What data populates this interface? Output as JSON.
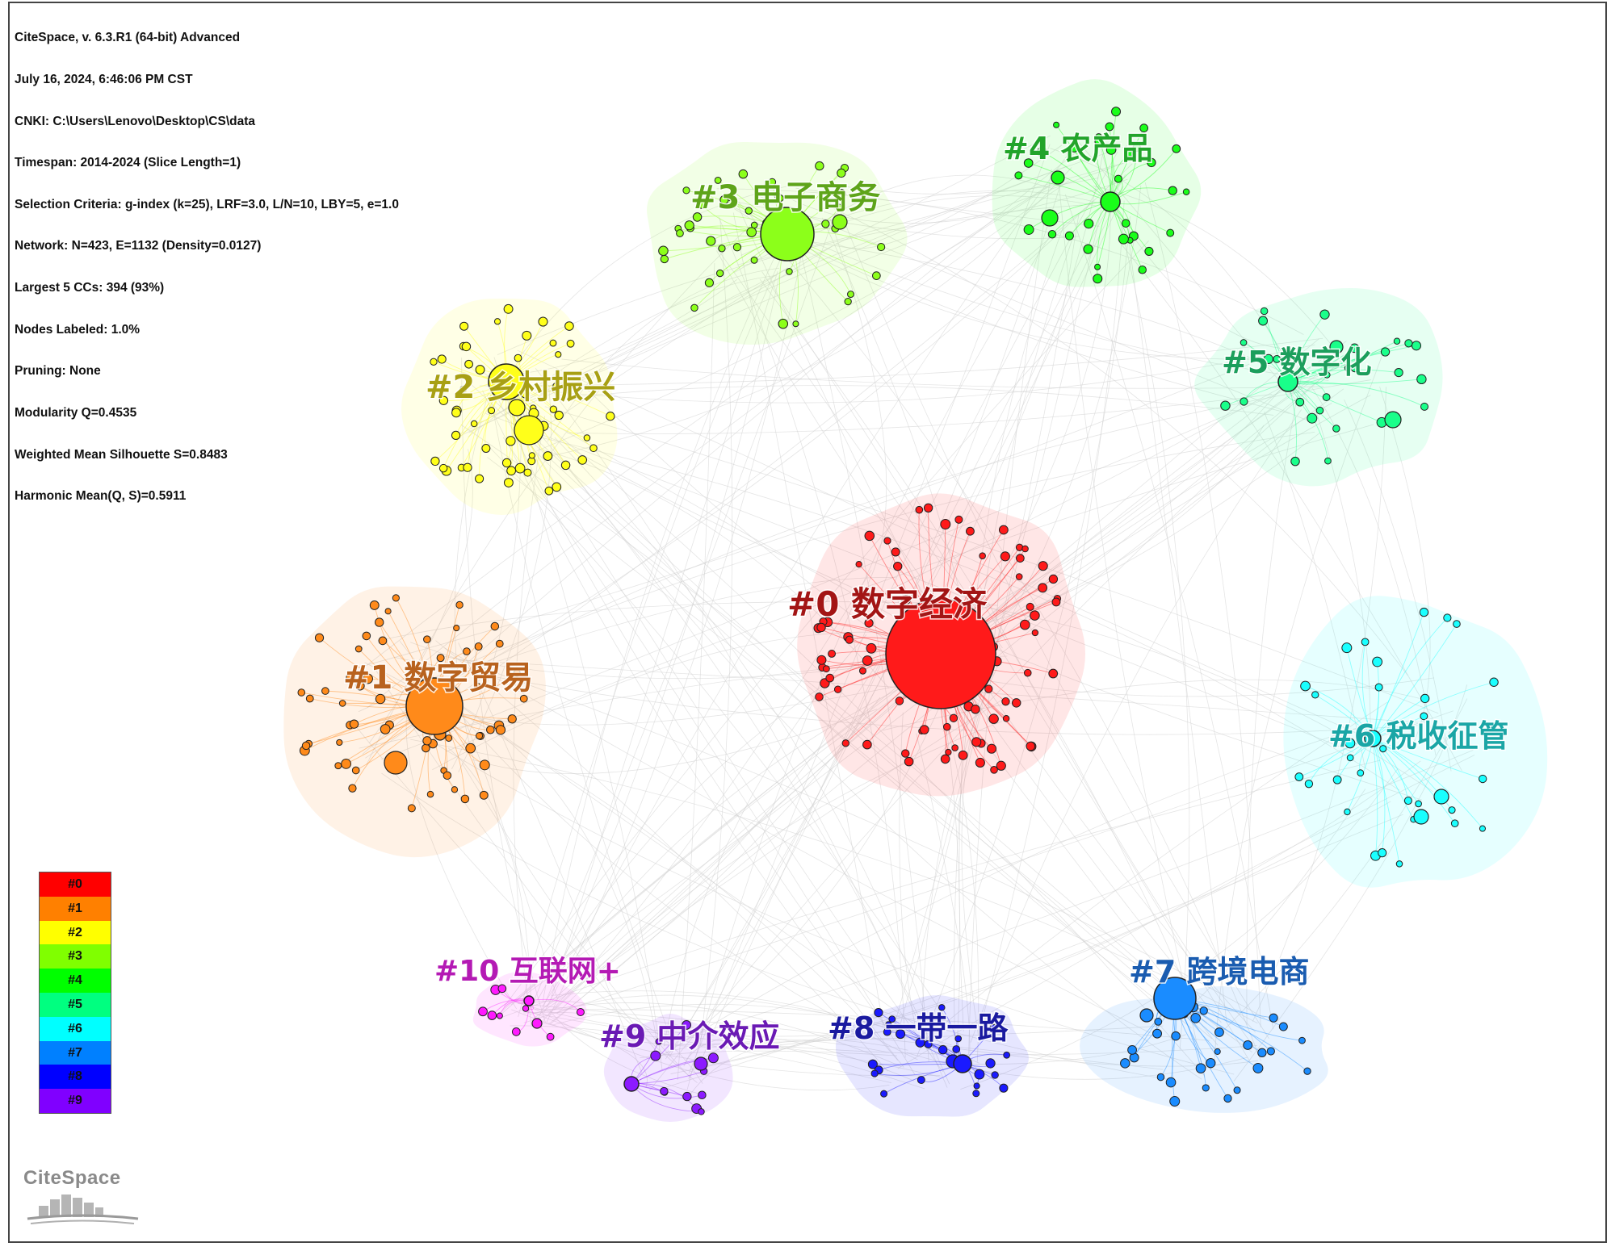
{
  "info_lines": [
    "CiteSpace, v. 6.3.R1 (64-bit) Advanced",
    "July 16, 2024, 6:46:06 PM CST",
    "CNKI: C:\\Users\\Lenovo\\Desktop\\CS\\data",
    "Timespan: 2014-2024 (Slice Length=1)",
    "Selection Criteria: g-index (k=25), LRF=3.0, L/N=10, LBY=5, e=1.0",
    "Network: N=423, E=1132 (Density=0.0127)",
    "Largest 5 CCs: 394 (93%)",
    "Nodes Labeled: 1.0%",
    "Pruning: None",
    "Modularity Q=0.4535",
    "Weighted Mean Silhouette S=0.8483",
    "Harmonic Mean(Q, S)=0.5911"
  ],
  "clusters": [
    {
      "id": "#0",
      "label": "#0 数字经济",
      "color": "#ff1a1a",
      "text_color": "#a31515"
    },
    {
      "id": "#1",
      "label": "#1 数字贸易",
      "color": "#ff8a1a",
      "text_color": "#b8621e"
    },
    {
      "id": "#2",
      "label": "#2 乡村振兴",
      "color": "#ffff1a",
      "text_color": "#a8a014"
    },
    {
      "id": "#3",
      "label": "#3 电子商务",
      "color": "#8cff1a",
      "text_color": "#5ea41a"
    },
    {
      "id": "#4",
      "label": "#4 农产品",
      "color": "#1aff1a",
      "text_color": "#22a42a"
    },
    {
      "id": "#5",
      "label": "#5 数字化",
      "color": "#1aff8a",
      "text_color": "#1c9e5c"
    },
    {
      "id": "#6",
      "label": "#6 税收征管",
      "color": "#1affff",
      "text_color": "#1aa6a6"
    },
    {
      "id": "#7",
      "label": "#7 跨境电商",
      "color": "#1a8cff",
      "text_color": "#1a5cb0"
    },
    {
      "id": "#8",
      "label": "#8 一带一路",
      "color": "#1a1aff",
      "text_color": "#1a1aa0"
    },
    {
      "id": "#9",
      "label": "#9 中介效应",
      "color": "#8c1aff",
      "text_color": "#6a1ab4"
    },
    {
      "id": "#10",
      "label": "#10 互联网+",
      "color": "#ff1aff",
      "text_color": "#b41ab4"
    }
  ],
  "legend": {
    "items": [
      "#0",
      "#1",
      "#2",
      "#3",
      "#4",
      "#5",
      "#6",
      "#7",
      "#8",
      "#9"
    ],
    "colors": [
      "#ff0000",
      "#ff8000",
      "#ffff00",
      "#80ff00",
      "#00ff00",
      "#00ff80",
      "#00ffff",
      "#0080ff",
      "#0000ff",
      "#8000ff"
    ]
  },
  "logo": {
    "text": "CiteSpace"
  }
}
